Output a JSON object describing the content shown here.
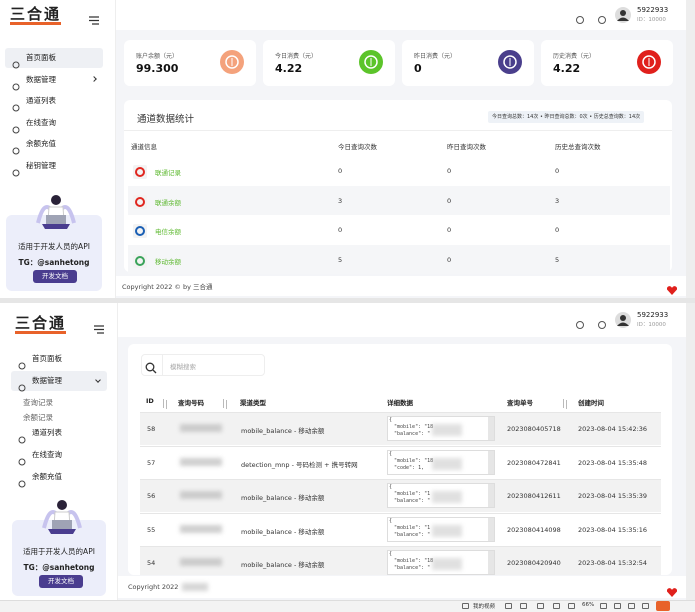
{
  "top": {
    "logo": "三合通",
    "menu": [
      "首页面板",
      "数据管理",
      "通道列表",
      "在线查询",
      "余额充值",
      "秘钥管理"
    ],
    "promo": {
      "text": "适用于开发人员的API",
      "tg": "TG：@sanhetong",
      "button": "开发文档"
    },
    "user": {
      "name": "5922933",
      "id": "ID：10000"
    },
    "stats": [
      {
        "label": "账户余额（元）",
        "value": "99.300",
        "color": "#f4a27c"
      },
      {
        "label": "今日消费（元）",
        "value": "4.22",
        "color": "#5cc42a"
      },
      {
        "label": "昨日消费（元）",
        "value": "0",
        "color": "#4a3f8c"
      },
      {
        "label": "历史消费（元）",
        "value": "4.22",
        "color": "#e0201c"
      }
    ],
    "channel_table": {
      "title": "通道数据统计",
      "summary": "今日查询总数：14次 • 昨日查询总数：0次 • 历史总查询数：14次",
      "headers": [
        "通道信息",
        "今日查询次数",
        "昨日查询次数",
        "历史总查询次数"
      ],
      "rows": [
        {
          "name": "联通记录",
          "today": "0",
          "yesterday": "0",
          "total": "0",
          "color": "#e0261f"
        },
        {
          "name": "联通余额",
          "today": "3",
          "yesterday": "0",
          "total": "3",
          "color": "#e0261f"
        },
        {
          "name": "电信余额",
          "today": "0",
          "yesterday": "0",
          "total": "0",
          "color": "#1a5fb4"
        },
        {
          "name": "移动余额",
          "today": "5",
          "yesterday": "0",
          "total": "5",
          "color": "#3aa35a"
        }
      ]
    },
    "footer": "Copyright 2022 © by 三合通"
  },
  "bottom": {
    "logo": "三合通",
    "menu": [
      "首页面板",
      "数据管理"
    ],
    "submenu": [
      "查询记录",
      "余额记录"
    ],
    "menu_after": [
      "通道列表",
      "在线查询",
      "余额充值"
    ],
    "promo": {
      "text": "适用于开发人员的API",
      "tg": "TG：@sanhetong",
      "button": "开发文档"
    },
    "user": {
      "name": "5922933",
      "id": "ID：10000"
    },
    "search_placeholder": "模糊搜索",
    "headers": [
      "ID",
      "查询号码",
      "渠道类型",
      "详细数据",
      "查询单号",
      "创建时间"
    ],
    "rows": [
      {
        "id": "58",
        "channel": "mobile_balance - 移动余额",
        "detail": [
          "{",
          "\"mobile\": \"18",
          "\"balance\": \""
        ],
        "order": "2023080405718",
        "time": "2023-08-04 15:42:36"
      },
      {
        "id": "57",
        "channel": "detection_mnp - 号码检测 + 携号转网",
        "detail": [
          "{",
          "\"mobile\": \"18",
          "\"code\": 1,"
        ],
        "order": "2023080472841",
        "time": "2023-08-04 15:35:48"
      },
      {
        "id": "56",
        "channel": "mobile_balance - 移动余额",
        "detail": [
          "{",
          "\"mobile\": \"1",
          "\"balance\": \""
        ],
        "order": "2023080412611",
        "time": "2023-08-04 15:35:39"
      },
      {
        "id": "55",
        "channel": "mobile_balance - 移动余额",
        "detail": [
          "{",
          "\"mobile\": \"1",
          "\"balance\": \""
        ],
        "order": "2023080414098",
        "time": "2023-08-04 15:35:16"
      },
      {
        "id": "54",
        "channel": "mobile_balance - 移动余额",
        "detail": [
          "{",
          "\"mobile\": \"18",
          "\"balance\": \""
        ],
        "order": "2023080420940",
        "time": "2023-08-04 15:32:54"
      }
    ],
    "footer": "Copyright 2022",
    "taskbar": {
      "video": "我的视频",
      "zoom": "66%"
    }
  }
}
